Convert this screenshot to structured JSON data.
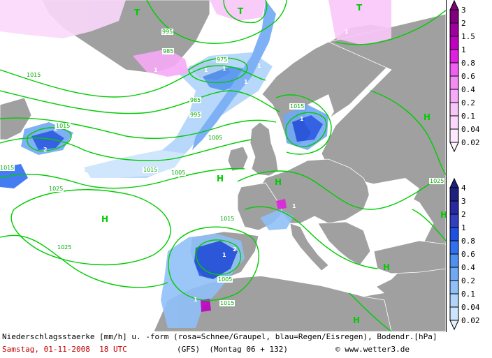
{
  "caption": {
    "line1": "Niederschlagsstaerke [mm/h] u. -form (rosa=Schnee/Graupel, blau=Regen/Eisregen), Bodendr.[hPa]",
    "date": "Samstag, 01-11-2008  18 UTC",
    "model": "(GFS)  (Montag 06 + 132)",
    "copyright": "© www.wetter3.de"
  },
  "legend_snow": {
    "labels": [
      "3",
      "2",
      "1.5",
      "1",
      "0.8",
      "0.6",
      "0.4",
      "0.2",
      "0.1",
      "0.04",
      "0.02"
    ],
    "colors": [
      "#800080",
      "#a000a0",
      "#c000c0",
      "#e020e0",
      "#f060f0",
      "#f48cf4",
      "#f7aaf7",
      "#f9c6f9",
      "#fbd8fb",
      "#fde8fd",
      "#fff4ff"
    ]
  },
  "legend_rain": {
    "labels": [
      "4",
      "3",
      "2",
      "1",
      "0.8",
      "0.6",
      "0.4",
      "0.2",
      "0.1",
      "0.04",
      "0.02"
    ],
    "colors": [
      "#202080",
      "#2828a0",
      "#3040c0",
      "#2050e0",
      "#3070f0",
      "#5090f0",
      "#70a8f4",
      "#90c0f8",
      "#b0d4fa",
      "#cce4fc",
      "#e4f2fe"
    ]
  },
  "map": {
    "colors": {
      "land": "#a0a0a0",
      "sea": "#ffffff",
      "isobar": "#00cc00",
      "border": "#ffffff"
    },
    "isobar_labels": [
      "995",
      "985",
      "975",
      "985",
      "995",
      "1005",
      "1015",
      "1015",
      "1015",
      "1005",
      "1015",
      "1025",
      "1025",
      "1015",
      "1005",
      "1015",
      "1025",
      "1015"
    ],
    "pressure_centers": [
      {
        "type": "T"
      },
      {
        "type": "T"
      },
      {
        "type": "T"
      },
      {
        "type": "H"
      },
      {
        "type": "H"
      },
      {
        "type": "H"
      },
      {
        "type": "H"
      },
      {
        "type": "H"
      },
      {
        "type": "H"
      },
      {
        "type": "H"
      }
    ],
    "precip_marks": [
      "1",
      "1",
      "1",
      "1",
      "1",
      "1",
      "1",
      "1",
      "2",
      "2",
      "1",
      "2",
      "1",
      "1"
    ]
  }
}
